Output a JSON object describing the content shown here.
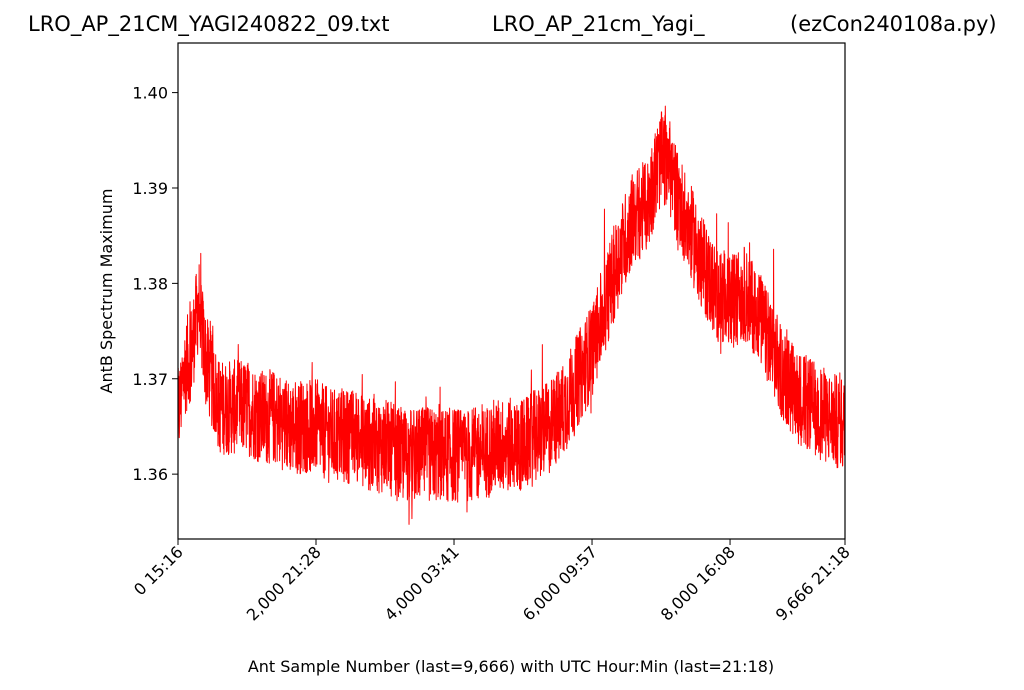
{
  "header": {
    "left": "LRO_AP_21CM_YAGI240822_09.txt",
    "center": "LRO_AP_21cm_Yagi_",
    "right": "(ezCon240108a.py)"
  },
  "chart_data": {
    "type": "line",
    "xlabel": "Ant Sample Number (last=9,666) with UTC Hour:Min (last=21:18)",
    "ylabel": "AntB Spectrum Maximum",
    "xlim": [
      0,
      9666
    ],
    "ylim": [
      1.3532,
      1.4052
    ],
    "grid": false,
    "color": "#ff0000",
    "x_ticks": [
      {
        "value": 0,
        "label": "0  15:16"
      },
      {
        "value": 2000,
        "label": "2,000  21:28"
      },
      {
        "value": 4000,
        "label": "4,000  03:41"
      },
      {
        "value": 6000,
        "label": "6,000  09:57"
      },
      {
        "value": 8000,
        "label": "8,000  16:08"
      },
      {
        "value": 9666,
        "label": "9,666  21:18"
      }
    ],
    "y_ticks": [
      {
        "value": 1.36,
        "label": "1.36"
      },
      {
        "value": 1.37,
        "label": "1.37"
      },
      {
        "value": 1.38,
        "label": "1.38"
      },
      {
        "value": 1.39,
        "label": "1.39"
      },
      {
        "value": 1.4,
        "label": "1.40"
      }
    ],
    "series": [
      {
        "points": [
          [
            0,
            1.366
          ],
          [
            100,
            1.371
          ],
          [
            200,
            1.373
          ],
          [
            300,
            1.378
          ],
          [
            350,
            1.375
          ],
          [
            400,
            1.372
          ],
          [
            600,
            1.367
          ],
          [
            800,
            1.367
          ],
          [
            1000,
            1.367
          ],
          [
            1200,
            1.366
          ],
          [
            1400,
            1.366
          ],
          [
            1600,
            1.365
          ],
          [
            1800,
            1.365
          ],
          [
            2000,
            1.365
          ],
          [
            2200,
            1.364
          ],
          [
            2400,
            1.364
          ],
          [
            2600,
            1.364
          ],
          [
            2800,
            1.363
          ],
          [
            3000,
            1.363
          ],
          [
            3200,
            1.362
          ],
          [
            3400,
            1.362
          ],
          [
            3600,
            1.362
          ],
          [
            3800,
            1.362
          ],
          [
            4000,
            1.362
          ],
          [
            4200,
            1.362
          ],
          [
            4400,
            1.362
          ],
          [
            4600,
            1.363
          ],
          [
            4800,
            1.363
          ],
          [
            5000,
            1.363
          ],
          [
            5200,
            1.364
          ],
          [
            5400,
            1.365
          ],
          [
            5600,
            1.367
          ],
          [
            5800,
            1.37
          ],
          [
            6000,
            1.373
          ],
          [
            6200,
            1.378
          ],
          [
            6400,
            1.383
          ],
          [
            6600,
            1.387
          ],
          [
            6800,
            1.388
          ],
          [
            6900,
            1.391
          ],
          [
            7000,
            1.393
          ],
          [
            7100,
            1.393
          ],
          [
            7200,
            1.39
          ],
          [
            7400,
            1.386
          ],
          [
            7600,
            1.382
          ],
          [
            7800,
            1.379
          ],
          [
            8000,
            1.378
          ],
          [
            8200,
            1.379
          ],
          [
            8400,
            1.377
          ],
          [
            8600,
            1.373
          ],
          [
            8800,
            1.37
          ],
          [
            9000,
            1.368
          ],
          [
            9200,
            1.367
          ],
          [
            9400,
            1.366
          ],
          [
            9666,
            1.365
          ]
        ],
        "noise_amplitude": 0.005,
        "samples": 9667
      }
    ]
  }
}
